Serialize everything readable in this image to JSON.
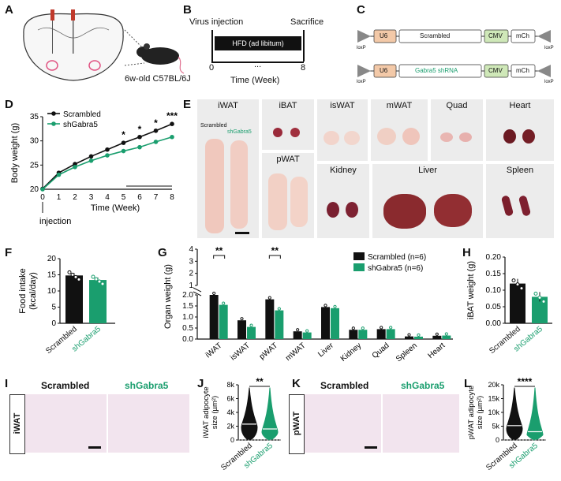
{
  "panels": {
    "A": "A",
    "B": "B",
    "C": "C",
    "D": "D",
    "E": "E",
    "F": "F",
    "G": "G",
    "H": "H",
    "I": "I",
    "J": "J",
    "K": "K",
    "L": "L"
  },
  "colors": {
    "scrambled": "#111111",
    "shgabra5": "#1a9e6e",
    "u6": "#f3c9a8",
    "cmv": "#cfe8b8",
    "loxp": "#888888"
  },
  "panel_a": {
    "mouse_label": "6w-old C57BL/6J",
    "icons": [
      "mouse-brain-coronal-section",
      "syringe-icon",
      "mouse-icon"
    ]
  },
  "panel_b": {
    "start_label": "Virus injection",
    "end_label": "Sacrifice",
    "bar_label": "HFD (ad libitum)",
    "tick_start": "0",
    "tick_dots": "...",
    "tick_end": "8",
    "axis_label": "Time (Week)"
  },
  "panel_c": {
    "construct1": {
      "u6": "U6",
      "insert": "Scrambled",
      "cmv": "CMV",
      "reporter": "mCh",
      "loxp_left": "loxP",
      "loxp_right": "loxP"
    },
    "construct2": {
      "u6": "U6",
      "insert": "Gabra5 shRNA",
      "cmv": "CMV",
      "reporter": "mCh",
      "loxp_left": "loxP",
      "loxp_right": "loxP"
    }
  },
  "panel_e": {
    "scale_bar": "scale-bar",
    "tissues": [
      {
        "label": "iWAT",
        "legend1": "Scrambled",
        "legend2": "shGabra5"
      },
      {
        "label": "iBAT"
      },
      {
        "label": "isWAT"
      },
      {
        "label": "mWAT"
      },
      {
        "label": "Quad"
      },
      {
        "label": "Heart"
      },
      {
        "label": "pWAT"
      },
      {
        "label": "Kidney"
      },
      {
        "label": "Liver"
      },
      {
        "label": "Spleen"
      }
    ]
  },
  "panel_i": {
    "title_left": "Scrambled",
    "title_right": "shGabra5",
    "side_label": "iWAT"
  },
  "panel_k": {
    "title_left": "Scrambled",
    "title_right": "shGabra5",
    "side_label": "pWAT"
  },
  "chart_data": [
    {
      "panel": "D",
      "type": "line",
      "xlabel": "Time (Week)",
      "ylabel": "Body weight (g)",
      "x": [
        0,
        1,
        2,
        3,
        4,
        5,
        6,
        7,
        8
      ],
      "xticks": [
        "0",
        "1",
        "2",
        "3",
        "4",
        "5",
        "6",
        "7",
        "8"
      ],
      "ylim": [
        20,
        35
      ],
      "yticks": [
        20,
        25,
        30,
        35
      ],
      "annotation": "injection",
      "significance": [
        {
          "x": 5,
          "text": "*"
        },
        {
          "x": 6,
          "text": "*"
        },
        {
          "x": 7,
          "text": "*"
        },
        {
          "x": 8,
          "text": "***"
        }
      ],
      "legend": "top-left",
      "series": [
        {
          "name": "Scrambled",
          "values": [
            20.1,
            23.4,
            25.2,
            26.8,
            28.2,
            29.6,
            30.8,
            32.1,
            33.5
          ]
        },
        {
          "name": "shGabra5",
          "values": [
            20.0,
            23.0,
            24.6,
            25.9,
            27.0,
            27.9,
            28.7,
            29.8,
            30.8
          ]
        }
      ]
    },
    {
      "panel": "F",
      "type": "bar",
      "ylabel": "Food intake\n(kcal/day)",
      "ylim": [
        0,
        20
      ],
      "yticks": [
        0,
        5,
        10,
        15,
        20
      ],
      "categories": [
        "Scrambled",
        "shGabra5"
      ],
      "values": [
        14.8,
        13.4
      ]
    },
    {
      "panel": "G",
      "type": "bar",
      "ylabel": "Organ weight (g)",
      "categories": [
        "iWAT",
        "isWAT",
        "pWAT",
        "mWAT",
        "Liver",
        "Kidney",
        "Quad",
        "Spleen",
        "Heart"
      ],
      "yticks_top": [
        1,
        2,
        3,
        4
      ],
      "yticks_bottom": [
        0.0,
        0.5,
        1.0,
        1.5,
        2.0
      ],
      "legend": "top-right",
      "series": [
        {
          "name": "Scrambled (n=6)",
          "values": [
            2.0,
            0.85,
            1.8,
            0.35,
            1.45,
            0.42,
            0.45,
            0.12,
            0.15
          ]
        },
        {
          "name": "shGabra5 (n=6)",
          "values": [
            1.55,
            0.55,
            1.3,
            0.3,
            1.4,
            0.42,
            0.45,
            0.11,
            0.16
          ]
        }
      ],
      "significance": [
        {
          "category": "iWAT",
          "text": "**"
        },
        {
          "category": "pWAT",
          "text": "**"
        }
      ]
    },
    {
      "panel": "H",
      "type": "bar",
      "ylabel": "iBAT weight (g)",
      "ylim": [
        0,
        0.2
      ],
      "yticks": [
        "0.00",
        "0.05",
        "0.10",
        "0.15",
        "0.20"
      ],
      "categories": [
        "Scrambled",
        "shGabra5"
      ],
      "values": [
        0.12,
        0.08
      ]
    },
    {
      "panel": "J",
      "type": "violin",
      "ylabel": "iWAT adipocyte\nsize (µm²)",
      "yticks": [
        "0",
        "2k",
        "4k",
        "6k",
        "8k"
      ],
      "categories": [
        "Scrambled",
        "shGabra5"
      ],
      "medians": [
        2300,
        1600
      ],
      "significance": "**"
    },
    {
      "panel": "L",
      "type": "violin",
      "ylabel": "pWAT adipocyte\nsize (µm²)",
      "yticks": [
        "0",
        "5k",
        "10k",
        "15k",
        "20k"
      ],
      "categories": [
        "Scrambled",
        "shGabra5"
      ],
      "medians": [
        5200,
        3000
      ],
      "significance": "****"
    }
  ]
}
